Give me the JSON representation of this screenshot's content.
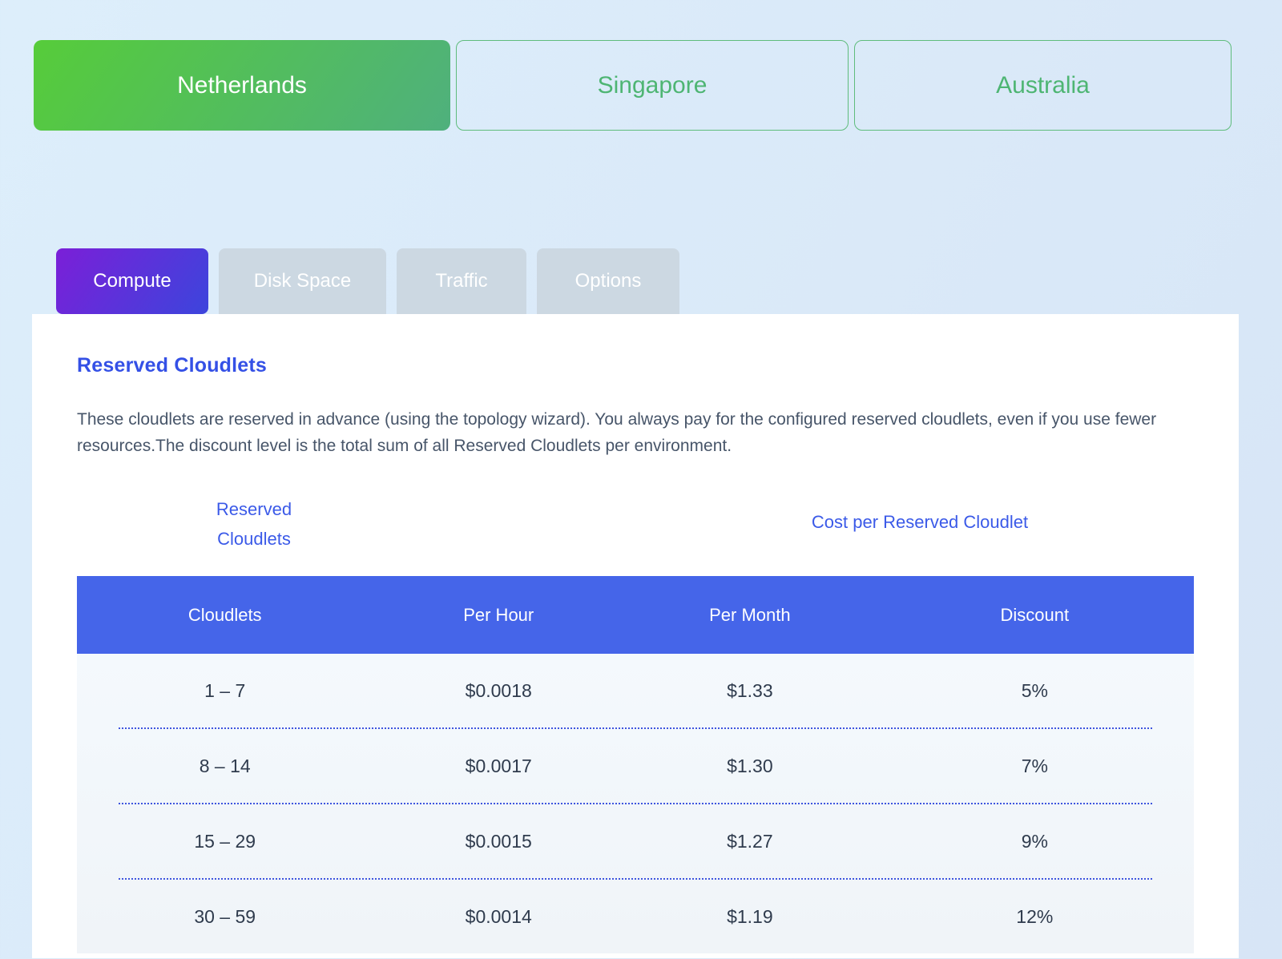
{
  "regions": [
    {
      "label": "Netherlands",
      "active": true
    },
    {
      "label": "Singapore",
      "active": false
    },
    {
      "label": "Australia",
      "active": false
    }
  ],
  "pricing_tabs": [
    {
      "label": "Compute",
      "active": true
    },
    {
      "label": "Disk Space",
      "active": false
    },
    {
      "label": "Traffic",
      "active": false
    },
    {
      "label": "Options",
      "active": false
    }
  ],
  "section": {
    "title": "Reserved Cloudlets",
    "description": "These cloudlets are reserved in advance (using the topology wizard). You always pay for the configured reserved cloudlets, even if you use fewer resources.The discount level is the total sum of all Reserved Cloudlets per environment.",
    "left_column_label": "Reserved Cloudlets",
    "right_column_label": "Cost per Reserved Cloudlet"
  },
  "table": {
    "headers": [
      "Cloudlets",
      "Per Hour",
      "Per Month",
      "Discount"
    ],
    "rows": [
      {
        "cloudlets": "1 – 7",
        "per_hour": "$0.0018",
        "per_month": "$1.33",
        "discount": "5%"
      },
      {
        "cloudlets": "8 – 14",
        "per_hour": "$0.0017",
        "per_month": "$1.30",
        "discount": "7%"
      },
      {
        "cloudlets": "15 – 29",
        "per_hour": "$0.0015",
        "per_month": "$1.27",
        "discount": "9%"
      },
      {
        "cloudlets": "30 – 59",
        "per_hour": "$0.0014",
        "per_month": "$1.19",
        "discount": "12%"
      }
    ]
  },
  "colors": {
    "page_background": "#dbe9f8",
    "region_active_gradient_start": "#56cc3a",
    "region_active_gradient_end": "#4fb07d",
    "region_inactive_text": "#4eb573",
    "region_inactive_border": "#5fbc7c",
    "tab_active_gradient_start": "#7b1fd8",
    "tab_active_gradient_end": "#3c45dc",
    "tab_inactive_bg": "#ccd8e2",
    "table_header_bg": "#4565e9",
    "accent_blue": "#3450e6",
    "link_blue": "#3b5ae8",
    "separator_blue": "#3e55df",
    "body_text": "#475569",
    "cell_text": "#2f3b4d"
  }
}
